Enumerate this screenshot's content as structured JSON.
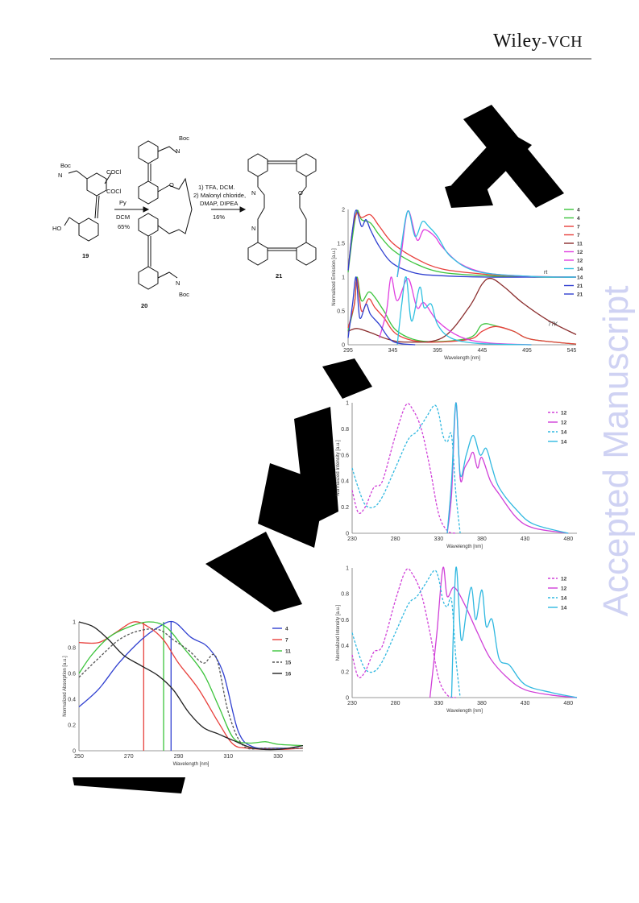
{
  "header": {
    "logo_primary": "Wiley",
    "logo_secondary": "-VCH",
    "watermark": "Accepted Manuscript"
  },
  "scheme": {
    "compound_19": "19",
    "compound_20": "20",
    "compound_21": "21",
    "step1": {
      "reagent": "COCl",
      "reagent2": "COCl",
      "base": "Py",
      "solvent": "DCM",
      "yield": "65%"
    },
    "step2": {
      "line1": "1) TFA, DCM.",
      "line2": "2) Malonyl chloride,",
      "line3": "DMAP, DIPEA",
      "yield": "16%"
    },
    "labels": {
      "boc": "Boc",
      "n": "N",
      "ho": "HO",
      "o": "O"
    }
  },
  "chart_data": [
    {
      "type": "line",
      "xlabel": "Wavelength [nm]",
      "ylabel": "Normalized Emission [a.u.]",
      "xlim": [
        295,
        550
      ],
      "ylim": [
        0,
        2
      ],
      "xticks": [
        295,
        345,
        395,
        445,
        495,
        545
      ],
      "yticks": [
        0,
        0.5,
        1,
        1.5,
        2
      ],
      "annotations": [
        "rt",
        "77K"
      ],
      "legend": [
        "4",
        "4",
        "7",
        "7",
        "11",
        "12",
        "12",
        "14",
        "14",
        "21",
        "21"
      ],
      "legend_colors": [
        "#3cc43c",
        "#3cc43c",
        "#e8403c",
        "#e8403c",
        "#8b2e2e",
        "#e040e0",
        "#e040e0",
        "#30c0e0",
        "#30c0e0",
        "#3040d0",
        "#3040d0"
      ],
      "series": [
        {
          "name": "4",
          "color": "#3cc43c",
          "x": [
            295,
            300,
            305,
            310,
            320,
            330,
            345,
            370,
            400,
            450,
            500,
            550
          ],
          "y": [
            1.07,
            1.6,
            1.98,
            1.85,
            1.8,
            1.62,
            1.4,
            1.2,
            1.07,
            1.02,
            1.0,
            1.0
          ]
        },
        {
          "name": "7",
          "color": "#e8403c",
          "x": [
            295,
            300,
            305,
            310,
            320,
            330,
            345,
            370,
            400,
            450,
            500,
            550
          ],
          "y": [
            1.1,
            1.7,
            1.95,
            1.88,
            1.92,
            1.75,
            1.5,
            1.28,
            1.12,
            1.04,
            1.01,
            1.0
          ]
        },
        {
          "name": "21",
          "color": "#3040d0",
          "x": [
            295,
            300,
            304,
            310,
            315,
            320,
            330,
            345,
            370,
            400,
            450,
            500,
            550
          ],
          "y": [
            1.1,
            1.7,
            1.99,
            1.75,
            1.85,
            1.7,
            1.45,
            1.2,
            1.06,
            1.02,
            1.0,
            1.0,
            1.0
          ]
        },
        {
          "name": "12",
          "color": "#e040e0",
          "x": [
            350,
            355,
            362,
            372,
            380,
            392,
            400,
            420,
            450,
            500,
            550
          ],
          "y": [
            1.0,
            1.4,
            1.98,
            1.55,
            1.7,
            1.6,
            1.45,
            1.2,
            1.06,
            1.01,
            1.0
          ]
        },
        {
          "name": "14",
          "color": "#30c0e0",
          "x": [
            350,
            355,
            362,
            370,
            378,
            385,
            395,
            410,
            440,
            500,
            550
          ],
          "y": [
            1.0,
            1.5,
            1.98,
            1.6,
            1.82,
            1.75,
            1.6,
            1.3,
            1.08,
            1.01,
            1.0
          ]
        },
        {
          "name": "4",
          "color": "#3cc43c",
          "x": [
            295,
            302,
            305,
            310,
            318,
            325,
            335,
            350,
            380,
            430,
            445,
            460,
            480,
            500,
            550
          ],
          "y": [
            0.2,
            0.6,
            1.0,
            0.65,
            0.78,
            0.7,
            0.5,
            0.2,
            0.05,
            0.1,
            0.3,
            0.28,
            0.2,
            0.08,
            0.01
          ]
        },
        {
          "name": "7",
          "color": "#e8403c",
          "x": [
            295,
            302,
            305,
            310,
            318,
            325,
            335,
            350,
            380,
            430,
            445,
            460,
            480,
            500,
            550
          ],
          "y": [
            0.25,
            0.6,
            0.98,
            0.5,
            0.68,
            0.55,
            0.4,
            0.15,
            0.04,
            0.08,
            0.2,
            0.27,
            0.2,
            0.08,
            0.01
          ]
        },
        {
          "name": "11",
          "color": "#8b2e2e",
          "x": [
            295,
            305,
            320,
            340,
            360,
            400,
            430,
            445,
            455,
            470,
            490,
            520,
            550
          ],
          "y": [
            0.2,
            0.24,
            0.18,
            0.08,
            0.04,
            0.1,
            0.55,
            0.9,
            0.98,
            0.85,
            0.62,
            0.35,
            0.15
          ]
        },
        {
          "name": "12",
          "color": "#e040e0",
          "x": [
            330,
            338,
            343,
            350,
            362,
            372,
            380,
            395,
            420,
            450,
            500
          ],
          "y": [
            0.1,
            0.5,
            1.0,
            0.65,
            0.98,
            0.55,
            0.62,
            0.35,
            0.12,
            0.03,
            0.0
          ]
        },
        {
          "name": "14",
          "color": "#30c0e0",
          "x": [
            350,
            355,
            360,
            366,
            375,
            380,
            388,
            395,
            410,
            440,
            500
          ],
          "y": [
            0.0,
            0.6,
            1.0,
            0.35,
            0.85,
            0.55,
            0.6,
            0.3,
            0.1,
            0.02,
            0.0
          ]
        },
        {
          "name": "21",
          "color": "#3040d0",
          "x": [
            295,
            300,
            304,
            308,
            315,
            320,
            330,
            345,
            370
          ],
          "y": [
            0.1,
            0.6,
            1.0,
            0.4,
            0.6,
            0.45,
            0.3,
            0.05,
            0.0
          ]
        }
      ]
    },
    {
      "type": "line",
      "xlabel": "Wavelength [nm]",
      "ylabel": "Normalized Intensity [a.u.]",
      "xlim": [
        230,
        490
      ],
      "ylim": [
        0,
        1
      ],
      "xticks": [
        230,
        280,
        330,
        380,
        430,
        480
      ],
      "yticks": [
        0,
        0.2,
        0.4,
        0.6,
        0.8,
        1
      ],
      "legend": [
        "12",
        "12",
        "14",
        "14"
      ],
      "series": [
        {
          "name": "12",
          "dash": true,
          "color": "#d040d8",
          "x": [
            230,
            237,
            245,
            255,
            265,
            280,
            292,
            300,
            310,
            320,
            330,
            340,
            350
          ],
          "y": [
            0.33,
            0.16,
            0.2,
            0.35,
            0.4,
            0.75,
            0.98,
            0.95,
            0.8,
            0.5,
            0.15,
            0.02,
            0.0
          ]
        },
        {
          "name": "12",
          "dash": false,
          "color": "#d040d8",
          "x": [
            340,
            345,
            350,
            355,
            360,
            365,
            370,
            375,
            380,
            390,
            400,
            420,
            440,
            480
          ],
          "y": [
            0.0,
            0.3,
            1.0,
            0.42,
            0.5,
            0.56,
            0.62,
            0.5,
            0.58,
            0.4,
            0.3,
            0.12,
            0.04,
            0.0
          ]
        },
        {
          "name": "14",
          "dash": true,
          "color": "#30b8e0",
          "x": [
            230,
            237,
            245,
            255,
            265,
            280,
            295,
            305,
            315,
            325,
            330,
            335,
            340,
            345,
            350,
            355
          ],
          "y": [
            0.5,
            0.35,
            0.22,
            0.2,
            0.28,
            0.5,
            0.72,
            0.78,
            0.88,
            0.98,
            0.92,
            0.75,
            0.7,
            0.75,
            0.3,
            0.0
          ]
        },
        {
          "name": "14",
          "dash": false,
          "color": "#30b8e0",
          "x": [
            340,
            345,
            350,
            355,
            362,
            370,
            378,
            385,
            392,
            400,
            420,
            440,
            480
          ],
          "y": [
            0.0,
            0.4,
            1.0,
            0.45,
            0.6,
            0.75,
            0.6,
            0.65,
            0.5,
            0.35,
            0.18,
            0.07,
            0.0
          ]
        }
      ]
    },
    {
      "type": "line",
      "xlabel": "Wavelength [nm]",
      "ylabel": "Normalized Intensity [a.u.]",
      "xlim": [
        230,
        490
      ],
      "ylim": [
        0,
        1
      ],
      "xticks": [
        230,
        280,
        330,
        380,
        430,
        480
      ],
      "yticks": [
        0,
        0.2,
        0.4,
        0.6,
        0.8,
        1
      ],
      "legend": [
        "12",
        "12",
        "14",
        "14"
      ],
      "series": [
        {
          "name": "12",
          "dash": true,
          "color": "#d040d8",
          "x": [
            230,
            237,
            245,
            255,
            265,
            280,
            292,
            300,
            310,
            320,
            330,
            340,
            350
          ],
          "y": [
            0.33,
            0.16,
            0.2,
            0.35,
            0.4,
            0.75,
            0.98,
            0.95,
            0.8,
            0.5,
            0.15,
            0.02,
            0.0
          ]
        },
        {
          "name": "12",
          "dash": false,
          "color": "#d040d8",
          "x": [
            320,
            328,
            335,
            340,
            348,
            360,
            375,
            390,
            410,
            430,
            460,
            490
          ],
          "y": [
            0.0,
            0.5,
            1.0,
            0.78,
            0.85,
            0.72,
            0.5,
            0.3,
            0.15,
            0.06,
            0.02,
            0.0
          ]
        },
        {
          "name": "14",
          "dash": true,
          "color": "#30b8e0",
          "x": [
            230,
            237,
            245,
            255,
            265,
            280,
            295,
            305,
            315,
            325,
            330,
            335,
            340,
            345,
            350,
            355
          ],
          "y": [
            0.5,
            0.35,
            0.22,
            0.2,
            0.28,
            0.5,
            0.72,
            0.78,
            0.88,
            0.98,
            0.92,
            0.75,
            0.7,
            0.75,
            0.3,
            0.0
          ]
        },
        {
          "name": "14",
          "dash": false,
          "color": "#30b8e0",
          "x": [
            345,
            350,
            356,
            362,
            368,
            373,
            380,
            385,
            392,
            400,
            412,
            430,
            460,
            490
          ],
          "y": [
            0.0,
            1.0,
            0.45,
            0.65,
            0.85,
            0.6,
            0.83,
            0.55,
            0.6,
            0.3,
            0.25,
            0.1,
            0.04,
            0.0
          ]
        }
      ]
    },
    {
      "type": "line",
      "xlabel": "Wavelength [nm]",
      "ylabel": "Normalized Absorption [a.u.]",
      "xlim": [
        250,
        340
      ],
      "ylim": [
        0,
        1
      ],
      "xticks": [
        250,
        270,
        290,
        310,
        330
      ],
      "yticks": [
        0,
        0.2,
        0.4,
        0.6,
        0.8,
        1
      ],
      "legend": [
        "4",
        "7",
        "11",
        "15",
        "16"
      ],
      "vlines": [
        {
          "x": 276,
          "color": "#e8403c"
        },
        {
          "x": 284,
          "color": "#3cc43c"
        },
        {
          "x": 287,
          "color": "#3040d0"
        }
      ],
      "series": [
        {
          "name": "4",
          "color": "#3040d0",
          "x": [
            250,
            258,
            266,
            275,
            282,
            288,
            295,
            302,
            308,
            314,
            320,
            330,
            340
          ],
          "y": [
            0.34,
            0.48,
            0.68,
            0.86,
            0.96,
            1.0,
            0.88,
            0.8,
            0.6,
            0.15,
            0.03,
            0.02,
            0.02
          ]
        },
        {
          "name": "7",
          "color": "#e8403c",
          "x": [
            250,
            258,
            265,
            272,
            278,
            284,
            290,
            298,
            306,
            312,
            318,
            330,
            340
          ],
          "y": [
            0.84,
            0.84,
            0.92,
            1.0,
            0.96,
            0.86,
            0.68,
            0.48,
            0.22,
            0.05,
            0.02,
            0.01,
            0.02
          ]
        },
        {
          "name": "11",
          "color": "#3cc43c",
          "x": [
            250,
            255,
            262,
            270,
            278,
            285,
            292,
            300,
            306,
            312,
            318,
            325,
            330,
            340
          ],
          "y": [
            0.6,
            0.74,
            0.88,
            0.96,
            1.0,
            0.96,
            0.8,
            0.6,
            0.35,
            0.1,
            0.06,
            0.07,
            0.05,
            0.04
          ]
        },
        {
          "name": "15",
          "color": "#555555",
          "dash": true,
          "x": [
            250,
            258,
            266,
            274,
            282,
            288,
            294,
            300,
            305,
            310,
            316,
            325,
            340
          ],
          "y": [
            0.57,
            0.72,
            0.86,
            0.93,
            0.94,
            0.86,
            0.78,
            0.68,
            0.73,
            0.3,
            0.04,
            0.02,
            0.02
          ]
        },
        {
          "name": "16",
          "color": "#222222",
          "x": [
            250,
            256,
            262,
            268,
            275,
            282,
            288,
            294,
            300,
            306,
            312,
            320,
            330,
            340
          ],
          "y": [
            1.0,
            0.96,
            0.86,
            0.74,
            0.66,
            0.58,
            0.47,
            0.3,
            0.18,
            0.13,
            0.08,
            0.02,
            0.01,
            0.04
          ]
        }
      ]
    }
  ]
}
